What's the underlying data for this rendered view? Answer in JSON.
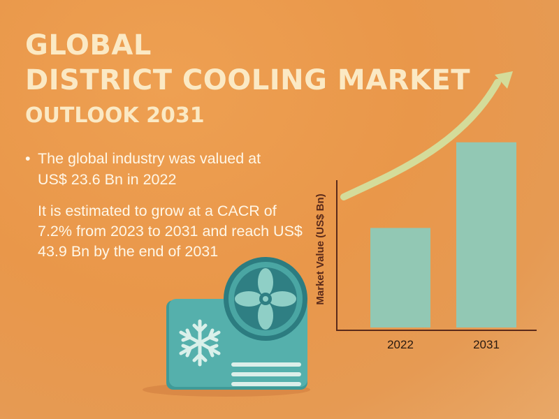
{
  "header": {
    "title_line1": "GLOBAL",
    "title_line2": "DISTRICT COOLING MARKET",
    "subtitle": "OUTLOOK 2031"
  },
  "body": {
    "bullet_marker": "•",
    "bullet_text": "The global industry was valued at US$ 23.6 Bn in 2022",
    "paragraph": "It is estimated to grow at a CACR of 7.2% from 2023 to 2031 and reach US$ 43.9 Bn by the end of 2031"
  },
  "icons": {
    "unit": "air-conditioner-outdoor-unit",
    "fan": "fan-icon",
    "snowflake": "snowflake-icon",
    "trend": "upward-trend-arrow-icon"
  },
  "colors": {
    "bar": "#92c8b4",
    "axis": "#5a2a1a",
    "arrow": "#d4dc9a",
    "unit_body": "#4aa6a3",
    "title": "#fbe9c4"
  },
  "chart_data": {
    "type": "bar",
    "categories": [
      "2022",
      "2031"
    ],
    "values": [
      23.6,
      43.9
    ],
    "ylabel": "Market Value (US$ Bn)",
    "xlabel": "",
    "ylim": [
      0,
      48
    ],
    "grid": false,
    "legend": "none"
  }
}
